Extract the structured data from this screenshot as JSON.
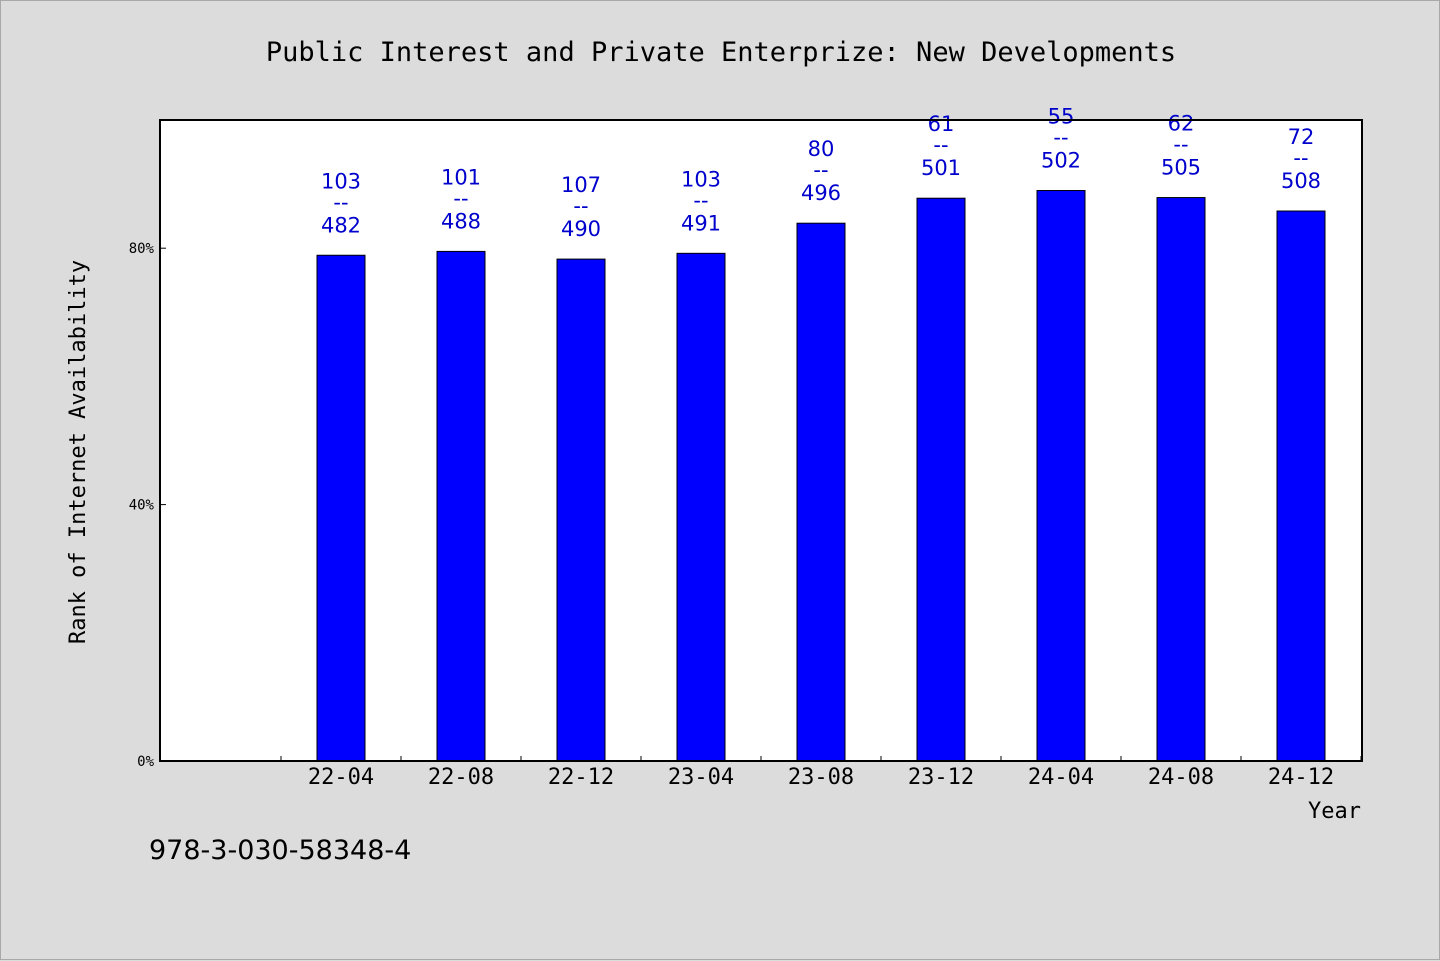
{
  "chart_data": {
    "type": "bar",
    "title": "Public Interest and Private Enterprize: New Developments",
    "xlabel": "Year",
    "ylabel": "Rank of Internet Availability",
    "categories": [
      "22-04",
      "22-08",
      "22-12",
      "23-04",
      "23-08",
      "23-12",
      "24-04",
      "24-08",
      "24-12"
    ],
    "values": [
      78.9,
      79.5,
      78.3,
      79.2,
      83.9,
      87.8,
      89.0,
      87.9,
      85.8
    ],
    "ylim": [
      0,
      100
    ],
    "yticks": [
      0,
      40,
      80
    ],
    "ytick_labels": [
      "0%",
      "40%",
      "80%"
    ],
    "data_labels": [
      {
        "top": "103",
        "sep": "--",
        "bottom": "482"
      },
      {
        "top": "101",
        "sep": "--",
        "bottom": "488"
      },
      {
        "top": "107",
        "sep": "--",
        "bottom": "490"
      },
      {
        "top": "103",
        "sep": "--",
        "bottom": "491"
      },
      {
        "top": "80",
        "sep": "--",
        "bottom": "496"
      },
      {
        "top": "61",
        "sep": "--",
        "bottom": "501"
      },
      {
        "top": "55",
        "sep": "--",
        "bottom": "502"
      },
      {
        "top": "62",
        "sep": "--",
        "bottom": "505"
      },
      {
        "top": "72",
        "sep": "--",
        "bottom": "508"
      }
    ],
    "bar_color": "#0000ff",
    "label_color": "#0000cc",
    "plot_background": "#ffffff",
    "page_background": "#dcdcdc",
    "grid": false,
    "legend": "none"
  },
  "footer_text": "978-3-030-58348-4"
}
